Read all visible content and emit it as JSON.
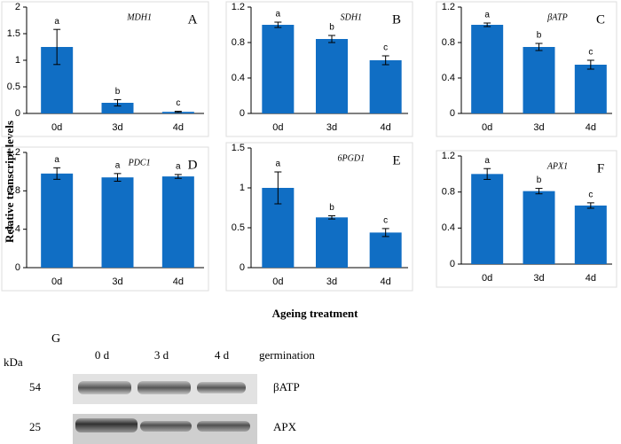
{
  "y_axis_label": "Relative transcript levels",
  "x_axis_label": "Ageing treatment",
  "blot": {
    "label": "G",
    "unit": "kDa",
    "lanes": [
      "0 d",
      "3 d",
      "4 d"
    ],
    "condition": "germination",
    "rows": [
      {
        "size": 54,
        "name": "βATP"
      },
      {
        "size": 25,
        "name": "APX"
      }
    ]
  },
  "chart_data": [
    {
      "type": "bar",
      "title": "MDH1",
      "panel": "A",
      "categories": [
        "0d",
        "3d",
        "4d"
      ],
      "values": [
        1.25,
        0.2,
        0.03
      ],
      "errors": [
        0.33,
        0.06,
        0.01
      ],
      "annotations": [
        "a",
        "b",
        "c"
      ],
      "color": "#106ec4",
      "ylim": [
        0,
        2
      ],
      "yticks": [
        0,
        0.5,
        1,
        1.5,
        2
      ]
    },
    {
      "type": "bar",
      "title": "SDH1",
      "panel": "B",
      "categories": [
        "0d",
        "3d",
        "4d"
      ],
      "values": [
        1.0,
        0.84,
        0.6
      ],
      "errors": [
        0.03,
        0.04,
        0.05
      ],
      "annotations": [
        "a",
        "b",
        "c"
      ],
      "color": "#106ec4",
      "ylim": [
        0,
        1.2
      ],
      "yticks": [
        0,
        0.4,
        0.8,
        1.2
      ]
    },
    {
      "type": "bar",
      "title": "βATP",
      "panel": "C",
      "categories": [
        "0d",
        "3d",
        "4d"
      ],
      "values": [
        1.0,
        0.75,
        0.55
      ],
      "errors": [
        0.02,
        0.04,
        0.05
      ],
      "annotations": [
        "a",
        "b",
        "c"
      ],
      "color": "#106ec4",
      "ylim": [
        0,
        1.2
      ],
      "yticks": [
        0,
        0.4,
        0.8,
        1.2
      ]
    },
    {
      "type": "bar",
      "title": "PDC1",
      "panel": "D",
      "categories": [
        "0d",
        "3d",
        "4d"
      ],
      "values": [
        0.98,
        0.94,
        0.95
      ],
      "errors": [
        0.06,
        0.04,
        0.02
      ],
      "annotations": [
        "a",
        "a",
        "a"
      ],
      "color": "#106ec4",
      "ylim": [
        0,
        1.2
      ],
      "yticks": [
        0,
        0.4,
        0.8,
        1.2
      ]
    },
    {
      "type": "bar",
      "title": "6PGD1",
      "panel": "E",
      "categories": [
        "0d",
        "3d",
        "4d"
      ],
      "values": [
        1.0,
        0.63,
        0.44
      ],
      "errors": [
        0.2,
        0.02,
        0.05
      ],
      "annotations": [
        "a",
        "b",
        "c"
      ],
      "color": "#106ec4",
      "ylim": [
        0,
        1.5
      ],
      "yticks": [
        0,
        0.5,
        1,
        1.5
      ]
    },
    {
      "type": "bar",
      "title": "APX1",
      "panel": "F",
      "categories": [
        "0d",
        "3d",
        "4d"
      ],
      "values": [
        1.0,
        0.81,
        0.65
      ],
      "errors": [
        0.06,
        0.03,
        0.03
      ],
      "annotations": [
        "a",
        "b",
        "c"
      ],
      "color": "#106ec4",
      "ylim": [
        0,
        1.2
      ],
      "yticks": [
        0,
        0.4,
        0.8,
        1.2
      ]
    }
  ]
}
